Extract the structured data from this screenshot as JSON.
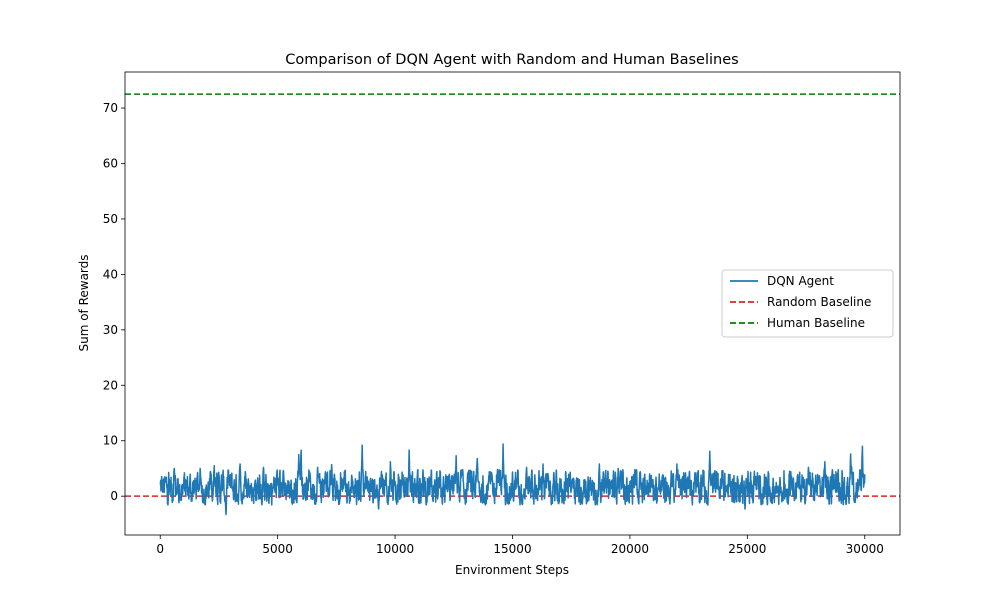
{
  "chart_data": {
    "type": "line",
    "title": "Comparison of DQN Agent with Random and Human Baselines",
    "xlabel": "Environment Steps",
    "ylabel": "Sum of Rewards",
    "xlim": [
      -1500,
      31500
    ],
    "ylim": [
      -7,
      76.5
    ],
    "xticks": [
      0,
      5000,
      10000,
      15000,
      20000,
      25000,
      30000
    ],
    "xtick_labels": [
      "0",
      "5000",
      "10000",
      "15000",
      "20000",
      "25000",
      "30000"
    ],
    "yticks": [
      0,
      10,
      20,
      30,
      40,
      50,
      60,
      70
    ],
    "ytick_labels": [
      "0",
      "10",
      "20",
      "30",
      "40",
      "50",
      "60",
      "70"
    ],
    "grid": false,
    "legend_position": "center-right",
    "series": [
      {
        "name": "DQN Agent",
        "style": "solid",
        "color": "#1f77b4",
        "x_range": [
          0,
          30000
        ],
        "values_summary": "noisy episode rewards mostly between -1 and 5",
        "peaks": [
          {
            "x": 600,
            "y": 5.0
          },
          {
            "x": 1700,
            "y": 5.0
          },
          {
            "x": 2300,
            "y": 5.5
          },
          {
            "x": 2800,
            "y": -3.3
          },
          {
            "x": 3400,
            "y": 5.8
          },
          {
            "x": 4400,
            "y": 5.2
          },
          {
            "x": 5900,
            "y": 7.5
          },
          {
            "x": 6000,
            "y": 8.3
          },
          {
            "x": 6700,
            "y": 5.2
          },
          {
            "x": 7300,
            "y": 5.7
          },
          {
            "x": 8600,
            "y": 9.2
          },
          {
            "x": 9300,
            "y": -2.3
          },
          {
            "x": 9800,
            "y": 6.2
          },
          {
            "x": 10600,
            "y": 8.3
          },
          {
            "x": 12600,
            "y": 7.3
          },
          {
            "x": 13500,
            "y": 6.8
          },
          {
            "x": 14600,
            "y": 9.4
          },
          {
            "x": 15600,
            "y": 5.2
          },
          {
            "x": 16300,
            "y": 5.8
          },
          {
            "x": 18700,
            "y": 5.8
          },
          {
            "x": 19500,
            "y": 5.0
          },
          {
            "x": 22000,
            "y": 5.8
          },
          {
            "x": 23400,
            "y": 8.1
          },
          {
            "x": 24900,
            "y": -2.3
          },
          {
            "x": 25300,
            "y": 4.5
          },
          {
            "x": 27600,
            "y": 5.2
          },
          {
            "x": 28300,
            "y": 6.2
          },
          {
            "x": 29400,
            "y": 7.6
          },
          {
            "x": 29900,
            "y": 9.0
          }
        ]
      },
      {
        "name": "Random Baseline",
        "style": "dashed",
        "color": "#d62728",
        "y": 0
      },
      {
        "name": "Human Baseline",
        "style": "dashed",
        "color": "#008000",
        "y": 72.5
      }
    ]
  }
}
